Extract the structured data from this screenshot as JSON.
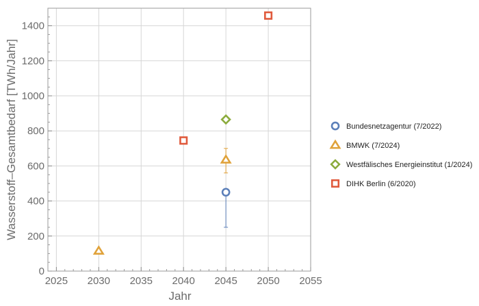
{
  "chart_data": {
    "type": "scatter",
    "xlabel": "Jahr",
    "ylabel": "Wasserstoff–Gesamtbedarf [TWh/Jahr]",
    "xlim": [
      2024,
      2055
    ],
    "ylim": [
      0,
      1500
    ],
    "xticks": [
      2025,
      2030,
      2035,
      2040,
      2045,
      2050,
      2055
    ],
    "yticks": [
      0,
      200,
      400,
      600,
      800,
      1000,
      1200,
      1400
    ],
    "grid": true,
    "legend_position": "right",
    "series": [
      {
        "name": "Bundesnetzagentur (7/2022)",
        "marker": "circle",
        "color": "#5b7fb9",
        "points": [
          {
            "x": 2045,
            "y": 450,
            "err_low": 250,
            "err_high": 450
          }
        ]
      },
      {
        "name": "BMWK (7/2024)",
        "marker": "triangle",
        "color": "#e0a23a",
        "points": [
          {
            "x": 2030,
            "y": 115
          },
          {
            "x": 2045,
            "y": 635,
            "err_low": 560,
            "err_high": 700
          }
        ]
      },
      {
        "name": "Westfälisches Energieinstitut (1/2024)",
        "marker": "diamond",
        "color": "#8bab3c",
        "points": [
          {
            "x": 2045,
            "y": 865
          }
        ]
      },
      {
        "name": "DIHK Berlin (6/2020)",
        "marker": "square",
        "color": "#e05a3c",
        "points": [
          {
            "x": 2040,
            "y": 745
          },
          {
            "x": 2050,
            "y": 1458
          }
        ]
      }
    ]
  }
}
